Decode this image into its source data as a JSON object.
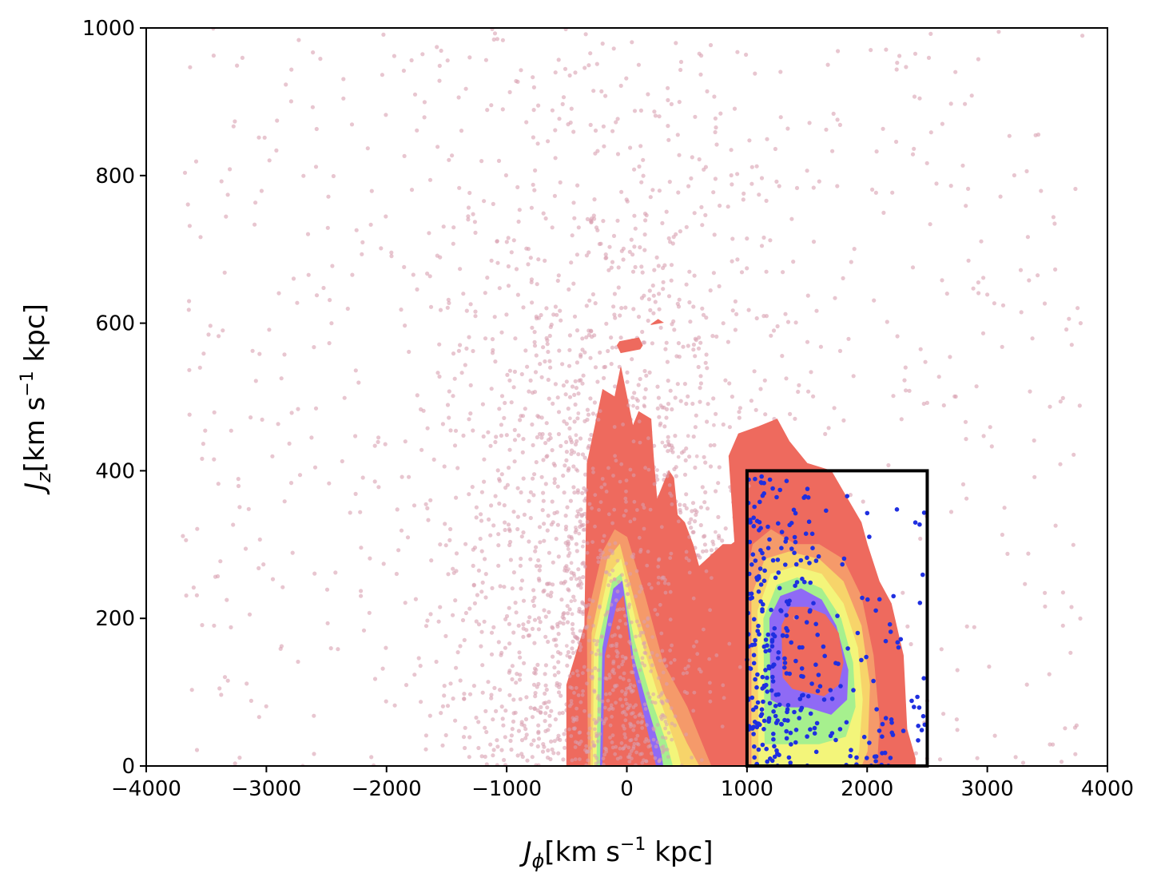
{
  "chart_data": {
    "type": "scatter",
    "title": "",
    "xlabel": {
      "main": "J",
      "sub": "ϕ",
      "unit_open": "[km s",
      "unit_sup": "−1",
      "unit_close": " kpc]"
    },
    "ylabel": {
      "main": "J",
      "sub": "z",
      "unit_open": "[km s",
      "unit_sup": "−1",
      "unit_close": " kpc]"
    },
    "xlim": [
      -4000,
      4000
    ],
    "ylim": [
      0,
      1000
    ],
    "xticks": [
      -4000,
      -3000,
      -2000,
      -1000,
      0,
      1000,
      2000,
      3000,
      4000
    ],
    "xtick_labels": [
      "−4000",
      "−3000",
      "−2000",
      "−1000",
      "0",
      "1000",
      "2000",
      "3000",
      "4000"
    ],
    "yticks": [
      0,
      200,
      400,
      600,
      800,
      1000
    ],
    "ytick_labels": [
      "0",
      "200",
      "400",
      "600",
      "800",
      "1000"
    ],
    "grid": false,
    "colors": {
      "background_points": "#d9a0b0",
      "selected_points": "#1f2fe0",
      "contour_levels": [
        "#ee6a5e",
        "#f59a6a",
        "#f7d46a",
        "#f3f57a",
        "#a6f08e",
        "#8f6af5",
        "#ee6a5e"
      ],
      "box": "#000000"
    },
    "selection_box": {
      "x": [
        1000,
        2500
      ],
      "y": [
        0,
        400
      ]
    },
    "contours": [
      {
        "name": "left-clump",
        "center": [
          0,
          130
        ],
        "levels": [
          {
            "color": "#ee6a5e",
            "polygon": [
              [
                -500,
                0
              ],
              [
                -500,
                110
              ],
              [
                -350,
                190
              ],
              [
                -330,
                410
              ],
              [
                -200,
                510
              ],
              [
                -100,
                500
              ],
              [
                -50,
                540
              ],
              [
                50,
                460
              ],
              [
                100,
                480
              ],
              [
                200,
                470
              ],
              [
                220,
                420
              ],
              [
                250,
                360
              ],
              [
                350,
                400
              ],
              [
                390,
                390
              ],
              [
                420,
                340
              ],
              [
                480,
                330
              ],
              [
                550,
                300
              ],
              [
                600,
                270
              ],
              [
                800,
                300
              ],
              [
                870,
                300
              ],
              [
                950,
                310
              ],
              [
                1000,
                0
              ]
            ]
          },
          {
            "color": "#f59a6a",
            "polygon": [
              [
                -320,
                0
              ],
              [
                -330,
                200
              ],
              [
                -200,
                290
              ],
              [
                -100,
                320
              ],
              [
                0,
                310
              ],
              [
                150,
                230
              ],
              [
                300,
                140
              ],
              [
                500,
                80
              ],
              [
                700,
                0
              ]
            ]
          },
          {
            "color": "#f7d46a",
            "polygon": [
              [
                -300,
                0
              ],
              [
                -290,
                180
              ],
              [
                -160,
                280
              ],
              [
                -60,
                300
              ],
              [
                100,
                200
              ],
              [
                300,
                100
              ],
              [
                500,
                30
              ],
              [
                600,
                0
              ]
            ]
          },
          {
            "color": "#f3f57a",
            "polygon": [
              [
                -280,
                0
              ],
              [
                -270,
                170
              ],
              [
                -150,
                260
              ],
              [
                -50,
                280
              ],
              [
                80,
                190
              ],
              [
                250,
                100
              ],
              [
                420,
                20
              ],
              [
                450,
                0
              ]
            ]
          },
          {
            "color": "#a6f08e",
            "polygon": [
              [
                -250,
                0
              ],
              [
                -230,
                170
              ],
              [
                -120,
                250
              ],
              [
                -50,
                260
              ],
              [
                60,
                170
              ],
              [
                200,
                90
              ],
              [
                330,
                30
              ],
              [
                380,
                0
              ]
            ]
          },
          {
            "color": "#8f6af5",
            "polygon": [
              [
                -220,
                0
              ],
              [
                -200,
                160
              ],
              [
                -110,
                240
              ],
              [
                -40,
                250
              ],
              [
                50,
                150
              ],
              [
                170,
                80
              ],
              [
                280,
                20
              ],
              [
                300,
                0
              ]
            ]
          },
          {
            "color": "#ee6a5e",
            "polygon": [
              [
                -200,
                0
              ],
              [
                -180,
                150
              ],
              [
                -80,
                220
              ],
              [
                -30,
                230
              ],
              [
                50,
                130
              ],
              [
                150,
                60
              ],
              [
                240,
                0
              ]
            ]
          }
        ]
      },
      {
        "name": "right-clump",
        "center": [
          1600,
          180
        ],
        "levels": [
          {
            "color": "#ee6a5e",
            "polygon": [
              [
                900,
                0
              ],
              [
                900,
                300
              ],
              [
                850,
                420
              ],
              [
                930,
                450
              ],
              [
                1100,
                460
              ],
              [
                1250,
                470
              ],
              [
                1350,
                440
              ],
              [
                1500,
                410
              ],
              [
                1700,
                400
              ],
              [
                1950,
                330
              ],
              [
                2000,
                300
              ],
              [
                2100,
                250
              ],
              [
                2200,
                220
              ],
              [
                2300,
                150
              ],
              [
                2330,
                50
              ],
              [
                2400,
                10
              ],
              [
                2400,
                0
              ]
            ]
          },
          {
            "color": "#f59a6a",
            "polygon": [
              [
                1000,
                0
              ],
              [
                1000,
                260
              ],
              [
                1050,
                300
              ],
              [
                1200,
                320
              ],
              [
                1400,
                300
              ],
              [
                1600,
                300
              ],
              [
                1800,
                280
              ],
              [
                1950,
                230
              ],
              [
                2050,
                150
              ],
              [
                2100,
                60
              ],
              [
                2080,
                0
              ]
            ]
          },
          {
            "color": "#f7d46a",
            "polygon": [
              [
                1040,
                0
              ],
              [
                1040,
                230
              ],
              [
                1150,
                280
              ],
              [
                1350,
                290
              ],
              [
                1600,
                280
              ],
              [
                1800,
                250
              ],
              [
                1950,
                190
              ],
              [
                2020,
                110
              ],
              [
                2000,
                20
              ],
              [
                1950,
                0
              ]
            ]
          },
          {
            "color": "#f3f57a",
            "polygon": [
              [
                1100,
                0
              ],
              [
                1090,
                210
              ],
              [
                1200,
                260
              ],
              [
                1400,
                270
              ],
              [
                1620,
                260
              ],
              [
                1800,
                220
              ],
              [
                1920,
                160
              ],
              [
                1960,
                90
              ],
              [
                1930,
                20
              ],
              [
                1880,
                0
              ]
            ]
          },
          {
            "color": "#a6f08e",
            "polygon": [
              [
                1150,
                30
              ],
              [
                1140,
                200
              ],
              [
                1250,
                245
              ],
              [
                1420,
                255
              ],
              [
                1620,
                240
              ],
              [
                1780,
                200
              ],
              [
                1880,
                140
              ],
              [
                1900,
                80
              ],
              [
                1820,
                40
              ],
              [
                1600,
                30
              ],
              [
                1400,
                30
              ]
            ]
          },
          {
            "color": "#8f6af5",
            "polygon": [
              [
                1200,
                90
              ],
              [
                1190,
                200
              ],
              [
                1280,
                230
              ],
              [
                1450,
                240
              ],
              [
                1620,
                225
              ],
              [
                1740,
                190
              ],
              [
                1840,
                130
              ],
              [
                1830,
                90
              ],
              [
                1700,
                70
              ],
              [
                1500,
                80
              ],
              [
                1320,
                80
              ]
            ]
          },
          {
            "color": "#ee6a5e",
            "polygon": [
              [
                1300,
                120
              ],
              [
                1290,
                190
              ],
              [
                1360,
                215
              ],
              [
                1500,
                215
              ],
              [
                1650,
                205
              ],
              [
                1760,
                180
              ],
              [
                1800,
                140
              ],
              [
                1760,
                110
              ],
              [
                1640,
                95
              ],
              [
                1500,
                100
              ],
              [
                1380,
                105
              ]
            ]
          }
        ]
      }
    ],
    "islands": [
      {
        "color": "#ee6a5e",
        "polygon": [
          [
            -80,
            570
          ],
          [
            -60,
            575
          ],
          [
            100,
            580
          ],
          [
            130,
            570
          ],
          [
            110,
            565
          ],
          [
            -50,
            560
          ]
        ]
      },
      {
        "color": "#ee6a5e",
        "polygon": [
          [
            200,
            598
          ],
          [
            300,
            601
          ],
          [
            260,
            605
          ]
        ]
      }
    ],
    "background_density": {
      "description": "scattered pink points",
      "x_range": [
        -3700,
        3800
      ],
      "y_range": [
        0,
        1000
      ]
    },
    "series": [
      {
        "role": "background",
        "color": "#d9a0b0"
      },
      {
        "role": "selected",
        "color": "#1f2fe0"
      }
    ]
  }
}
